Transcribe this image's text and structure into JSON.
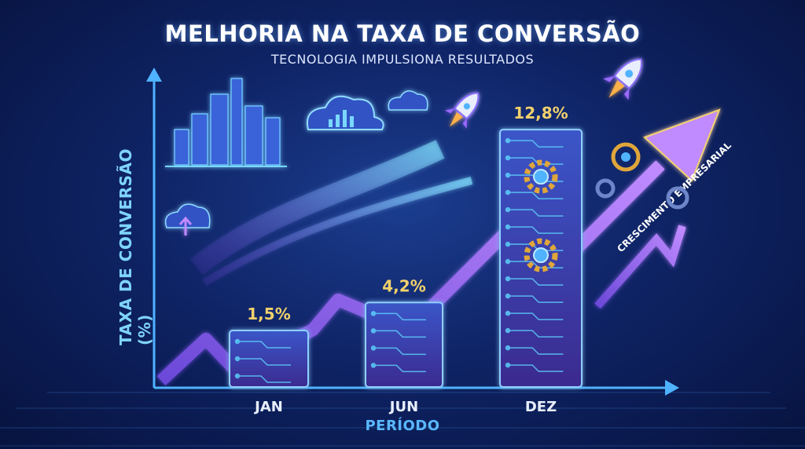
{
  "title": "MELHORIA NA TAXA DE CONVERSÃO",
  "subtitle": "TECNOLOGIA IMPULSIONA RESULTADOS",
  "ylabel": "TAXA DE CONVERSÃO (%)",
  "xlabel": "PERÍODO",
  "arrow_label": "CRESCIMENTO EMPRESARIAL",
  "colors": {
    "background": "#0f2466",
    "axis": "#4fb3ff",
    "bar_fill": "#2a3c9e",
    "bar_border": "#8fd0ff",
    "value_label": "#f2d16b",
    "arrow": "#9b6bff",
    "gear": "#e0a63a",
    "circuit": "#5fd7ff"
  },
  "chart_data": {
    "type": "bar",
    "categories": [
      "JAN",
      "JUN",
      "DEZ"
    ],
    "values": [
      1.5,
      4.2,
      12.8
    ],
    "labels": [
      "1,5%",
      "4,2%",
      "12,8%"
    ],
    "ylim": [
      0,
      13
    ],
    "grid": false
  }
}
